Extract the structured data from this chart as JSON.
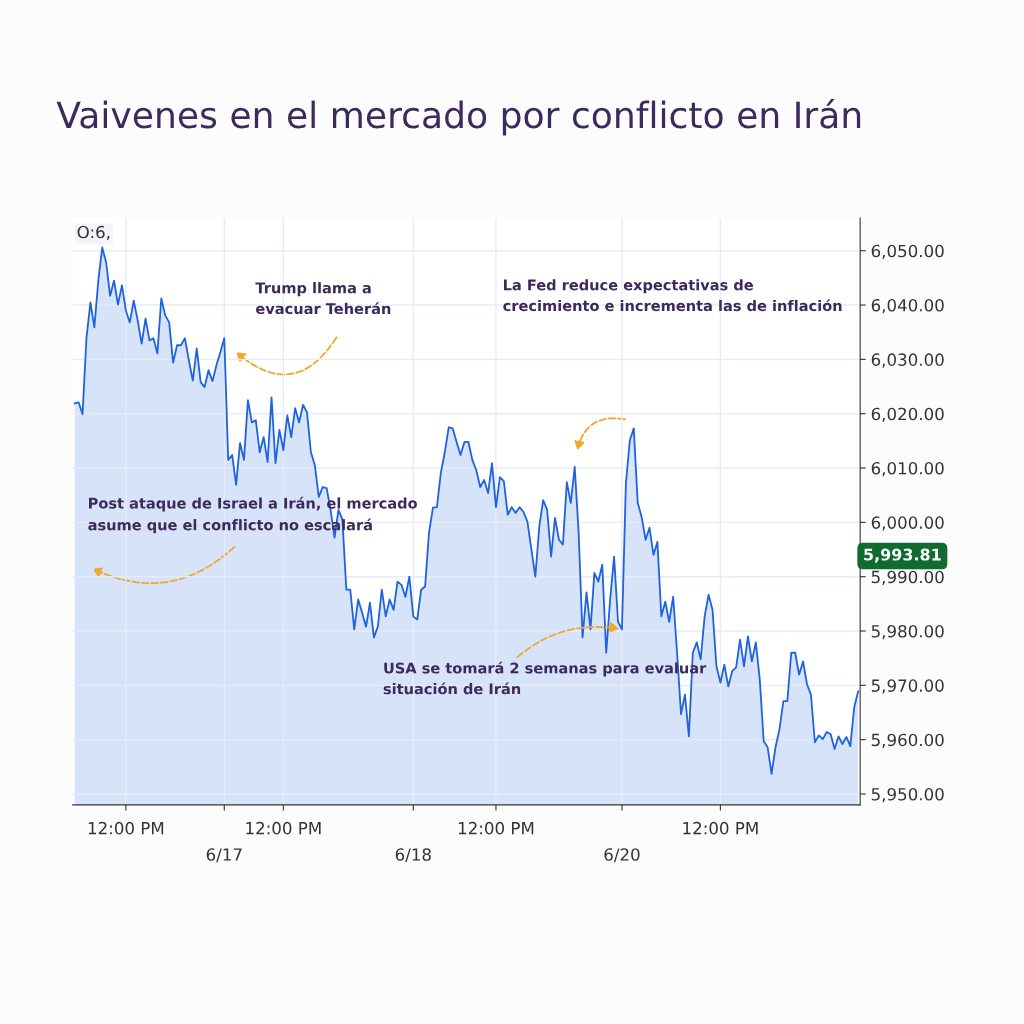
{
  "chart_data": {
    "type": "area",
    "title": "Vaivenes en el mercado por conflicto en Irán",
    "categories": [
      null,
      null,
      null,
      null,
      null,
      null,
      null,
      null,
      null,
      null,
      null,
      null,
      null,
      "12:00 PM",
      null,
      null,
      null,
      null,
      null,
      null,
      null,
      null,
      null,
      null,
      null,
      null,
      null,
      null,
      null,
      null,
      null,
      null,
      null,
      null,
      null,
      null,
      null,
      null,
      "6/17",
      null,
      null,
      null,
      null,
      null,
      null,
      null,
      null,
      null,
      null,
      null,
      null,
      null,
      null,
      "12:00 PM",
      null,
      null,
      null,
      null,
      null,
      null,
      null,
      null,
      null,
      null,
      null,
      null,
      null,
      null,
      null,
      null,
      null,
      null,
      null,
      null,
      null,
      null,
      null,
      null,
      null,
      null,
      null,
      null,
      null,
      null,
      null,
      null,
      "6/18",
      null,
      null,
      null,
      null,
      null,
      null,
      null,
      null,
      null,
      null,
      null,
      null,
      null,
      null,
      null,
      null,
      null,
      null,
      null,
      null,
      "12:00 PM",
      null,
      null,
      null,
      null,
      null,
      null,
      null,
      null,
      null,
      null,
      null,
      null,
      null,
      null,
      null,
      null,
      null,
      null,
      null,
      null,
      null,
      null,
      null,
      null,
      null,
      null,
      null,
      null,
      null,
      null,
      null,
      "6/20",
      null,
      null,
      null,
      null,
      null,
      null,
      null,
      null,
      null,
      null,
      null,
      null,
      null,
      null,
      null,
      null,
      null,
      null,
      null,
      null,
      null,
      null,
      null,
      null,
      "12:00 PM",
      null,
      null,
      null,
      null,
      null,
      null,
      null,
      null,
      null,
      null,
      null,
      null,
      null,
      null,
      null,
      null,
      null,
      null,
      null,
      null,
      null,
      null,
      null,
      null,
      null,
      null,
      null,
      null,
      null,
      null,
      null,
      null,
      null,
      null,
      null
    ],
    "series": [
      {
        "color": "#1f63e0",
        "values": [
          6021.9,
          6022.1,
          6019.9,
          6034.0,
          6040.5,
          6035.9,
          6044.5,
          6050.6,
          6047.8,
          6041.7,
          6044.5,
          6040.1,
          6043.6,
          6039.0,
          6036.8,
          6040.8,
          6037.2,
          6032.9,
          6037.5,
          6033.5,
          6033.9,
          6031.1,
          6041.2,
          6038.1,
          6036.8,
          6029.4,
          6032.6,
          6032.6,
          6033.9,
          6029.8,
          6026.1,
          6032.0,
          6025.8,
          6024.9,
          6028.0,
          6026.0,
          6028.9,
          6031.3,
          6033.9,
          6011.5,
          6012.4,
          6006.9,
          6014.6,
          6011.5,
          6022.5,
          6018.4,
          6018.8,
          6012.9,
          6015.7,
          6011.1,
          6023.0,
          6010.9,
          6017.0,
          6013.3,
          6019.7,
          6015.7,
          6021.0,
          6018.4,
          6021.6,
          6020.3,
          6012.9,
          6010.5,
          6004.7,
          6006.5,
          6006.3,
          6002.3,
          5997.2,
          6002.3,
          6000.5,
          5987.6,
          5987.6,
          5980.3,
          5985.8,
          5983.4,
          5980.8,
          5985.2,
          5978.8,
          5980.8,
          5987.6,
          5982.7,
          5985.8,
          5983.9,
          5989.1,
          5988.5,
          5986.3,
          5990.0,
          5982.7,
          5982.1,
          5987.6,
          5988.2,
          5998.1,
          6002.7,
          6002.8,
          6009.1,
          6012.9,
          6017.5,
          6017.3,
          6014.8,
          6012.4,
          6014.8,
          6014.8,
          6011.5,
          6009.6,
          6006.5,
          6007.8,
          6005.4,
          6010.9,
          6002.8,
          6008.3,
          6007.6,
          6001.4,
          6002.8,
          6001.7,
          6002.8,
          6001.9,
          6000.1,
          5995.0,
          5990.0,
          5999.2,
          6004.1,
          6002.3,
          5993.7,
          6000.8,
          5996.8,
          5995.9,
          6007.4,
          6003.6,
          6010.2,
          5998.1,
          5978.8,
          5987.1,
          5980.3,
          5990.7,
          5989.1,
          5992.2,
          5976.0,
          5985.8,
          5993.7,
          5981.7,
          5980.3,
          6007.2,
          6015.1,
          6017.3,
          6003.6,
          6001.0,
          5996.8,
          5999.0,
          5994.0,
          5996.4,
          5982.7,
          5985.4,
          5981.7,
          5986.3,
          5976.0,
          5964.7,
          5968.3,
          5960.6,
          5976.0,
          5977.9,
          5974.8,
          5982.7,
          5986.7,
          5983.9,
          5973.5,
          5970.5,
          5973.8,
          5969.8,
          5972.6,
          5973.3,
          5978.4,
          5973.5,
          5979.0,
          5974.4,
          5977.9,
          5971.1,
          5959.7,
          5958.6,
          5953.7,
          5958.6,
          5961.9,
          5967.1,
          5967.1,
          5976.0,
          5976.0,
          5972.0,
          5974.4,
          5970.2,
          5968.3,
          5959.5,
          5960.8,
          5960.1,
          5961.4,
          5961.0,
          5958.3,
          5960.6,
          5959.2,
          5960.5,
          5958.8,
          5966.0,
          5968.9
        ]
      }
    ],
    "ylim": [
      5948,
      6056
    ],
    "yticks": [
      {
        "value": 5950,
        "label": "5,950.00"
      },
      {
        "value": 5960,
        "label": "5,960.00"
      },
      {
        "value": 5970,
        "label": "5,970.00"
      },
      {
        "value": 5980,
        "label": "5,980.00"
      },
      {
        "value": 5990,
        "label": "5,990.00"
      },
      {
        "value": 6000,
        "label": "6,000.00"
      },
      {
        "value": 6010,
        "label": "6,010.00"
      },
      {
        "value": 6020,
        "label": "6,020.00"
      },
      {
        "value": 6030,
        "label": "6,030.00"
      },
      {
        "value": 6040,
        "label": "6,040.00"
      },
      {
        "value": 6050,
        "label": "6,050.00"
      }
    ],
    "grid": true,
    "annotations": [
      "Trump llama a\nevacuar Teherán",
      "La Fed reduce expectativas de\ncrecimiento e incrementa las de inflación",
      "Post ataque de Israel a Irán, el mercado\nasume que el conflicto no escalará",
      {
        "text": "USA se tomará 2 semanas para evaluar\nsituación de Irán",
        "x": "6/20",
        "y": 5980.3
      },
      "5,993.81",
      "O:6,"
    ]
  }
}
